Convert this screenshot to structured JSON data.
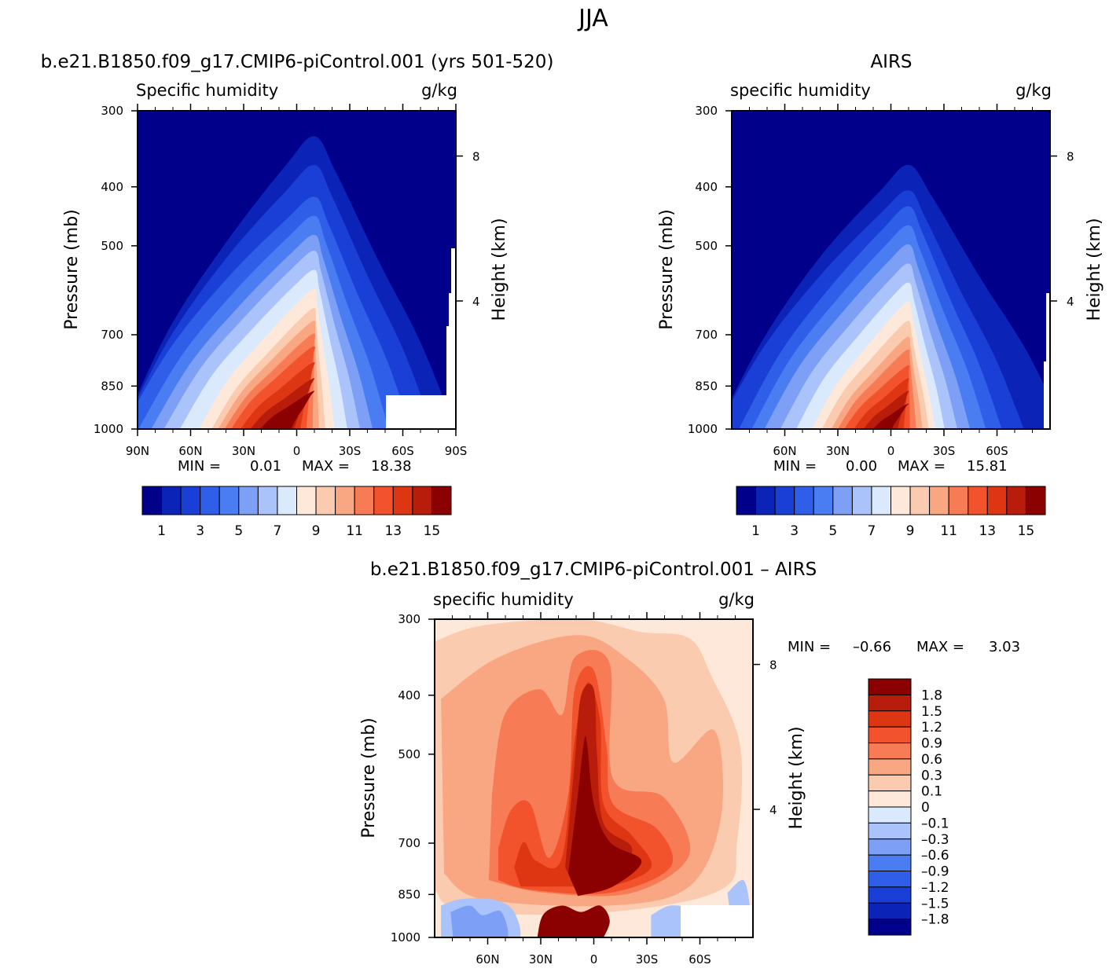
{
  "page_title": "JJA",
  "colors": {
    "seq": [
      "#00008b",
      "#0c23b8",
      "#1a3fd6",
      "#2f5ee8",
      "#4a7cf2",
      "#7d9ff5",
      "#aac4fb",
      "#dbe9fd",
      "#fde8d9",
      "#fbcbb0",
      "#f8a782",
      "#f77c55",
      "#f2522c",
      "#de3512",
      "#b81d0b",
      "#8b0000"
    ],
    "div": [
      "#00008b",
      "#0c23b8",
      "#1a3fd6",
      "#2f5ee8",
      "#4a7cf2",
      "#7d9ff5",
      "#aac4fb",
      "#dbe9fd",
      "#fde8d9",
      "#fbcbb0",
      "#f8a782",
      "#f77c55",
      "#f2522c",
      "#de3512",
      "#b81d0b",
      "#8b0000"
    ]
  },
  "chart_data": [
    {
      "type": "contour",
      "title": "b.e21.B1850.f09_g17.CMIP6-piControl.001 (yrs 501-520)",
      "left_label": "Specific humidity",
      "right_label": "g/kg",
      "ylabel": "Pressure (mb)",
      "ylabel_right": "Height (km)",
      "x_ticks": [
        "90N",
        "60N",
        "30N",
        "0",
        "30S",
        "60S",
        "90S"
      ],
      "y_ticks": [
        "300",
        "400",
        "500",
        "700",
        "850",
        "1000"
      ],
      "height_ticks": [
        "8",
        "4"
      ],
      "stats": {
        "min_label": "MIN =",
        "min": "0.01",
        "max_label": "MAX =",
        "max": "18.38"
      },
      "colorbar_labels": [
        "1",
        "3",
        "5",
        "7",
        "9",
        "11",
        "13",
        "15"
      ],
      "min": 0.01,
      "max": 18.38,
      "peak_latitude": -10
    },
    {
      "type": "contour",
      "title": "AIRS",
      "left_label": "specific humidity",
      "right_label": "g/kg",
      "ylabel": "Pressure (mb)",
      "ylabel_right": "Height (km)",
      "x_ticks": [
        "60N",
        "30N",
        "0",
        "30S",
        "60S"
      ],
      "y_ticks": [
        "300",
        "400",
        "500",
        "700",
        "850",
        "1000"
      ],
      "height_ticks": [
        "8",
        "4"
      ],
      "stats": {
        "min_label": "MIN =",
        "min": "0.00",
        "max_label": "MAX =",
        "max": "15.81"
      },
      "colorbar_labels": [
        "1",
        "3",
        "5",
        "7",
        "9",
        "11",
        "13",
        "15"
      ],
      "min": 0.0,
      "max": 15.81,
      "peak_latitude": -10
    },
    {
      "type": "contour",
      "title": "b.e21.B1850.f09_g17.CMIP6-piControl.001 – AIRS",
      "left_label": "specific humidity",
      "right_label": "g/kg",
      "ylabel": "Pressure (mb)",
      "ylabel_right": "Height (km)",
      "x_ticks": [
        "60N",
        "30N",
        "0",
        "30S",
        "60S"
      ],
      "y_ticks": [
        "300",
        "400",
        "500",
        "700",
        "850",
        "1000"
      ],
      "height_ticks": [
        "8",
        "4"
      ],
      "stats": {
        "min_label": "MIN =",
        "min": "–0.66",
        "max_label": "MAX =",
        "max": "3.03"
      },
      "colorbar_labels": [
        "1.8",
        "1.5",
        "1.2",
        "0.9",
        "0.6",
        "0.3",
        "0.1",
        "0",
        "–0.1",
        "–0.3",
        "–0.6",
        "–0.9",
        "–1.2",
        "–1.5",
        "–1.8"
      ],
      "min": -0.66,
      "max": 3.03,
      "peak_latitude": -5
    }
  ]
}
